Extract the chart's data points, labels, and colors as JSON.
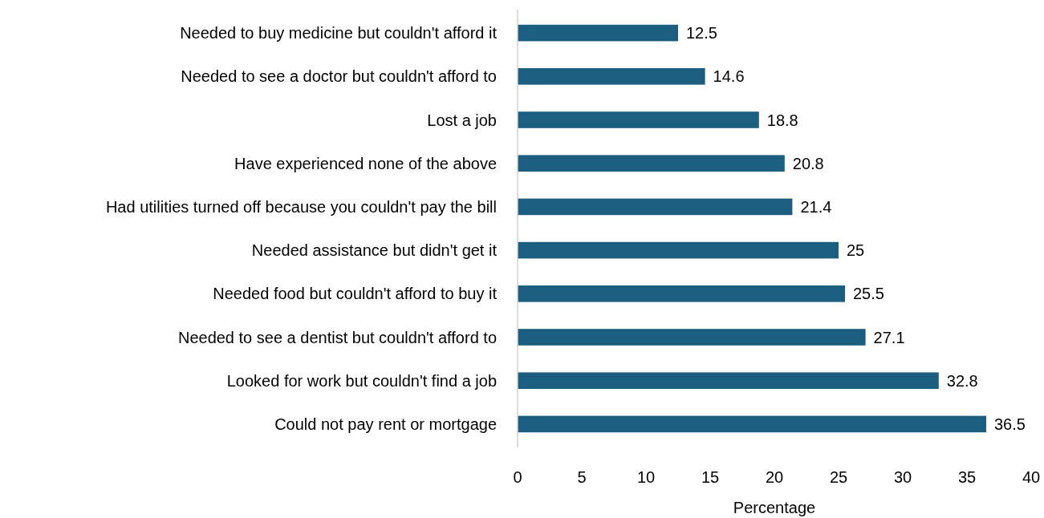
{
  "chart_data": {
    "type": "bar",
    "orientation": "horizontal",
    "xlabel": "Percentage",
    "categories": [
      "Needed to buy medicine but couldn't afford it",
      "Needed to see a doctor but couldn't afford to",
      "Lost a job",
      "Have experienced none of the above",
      "Had utilities turned off because you couldn't pay the bill",
      "Needed assistance but didn't get it",
      "Needed food but couldn't afford to buy it",
      "Needed to see a dentist but couldn't afford to",
      "Looked for work but couldn't find a job",
      "Could not pay rent or mortgage"
    ],
    "values": [
      12.5,
      14.6,
      18.8,
      20.8,
      21.4,
      25,
      25.5,
      27.1,
      32.8,
      36.5
    ],
    "color": "#1b5e80",
    "xlim": [
      0,
      40
    ],
    "xticks": [
      0,
      5,
      10,
      15,
      20,
      25,
      30,
      35,
      40
    ],
    "data_labels": true,
    "grid": false
  }
}
